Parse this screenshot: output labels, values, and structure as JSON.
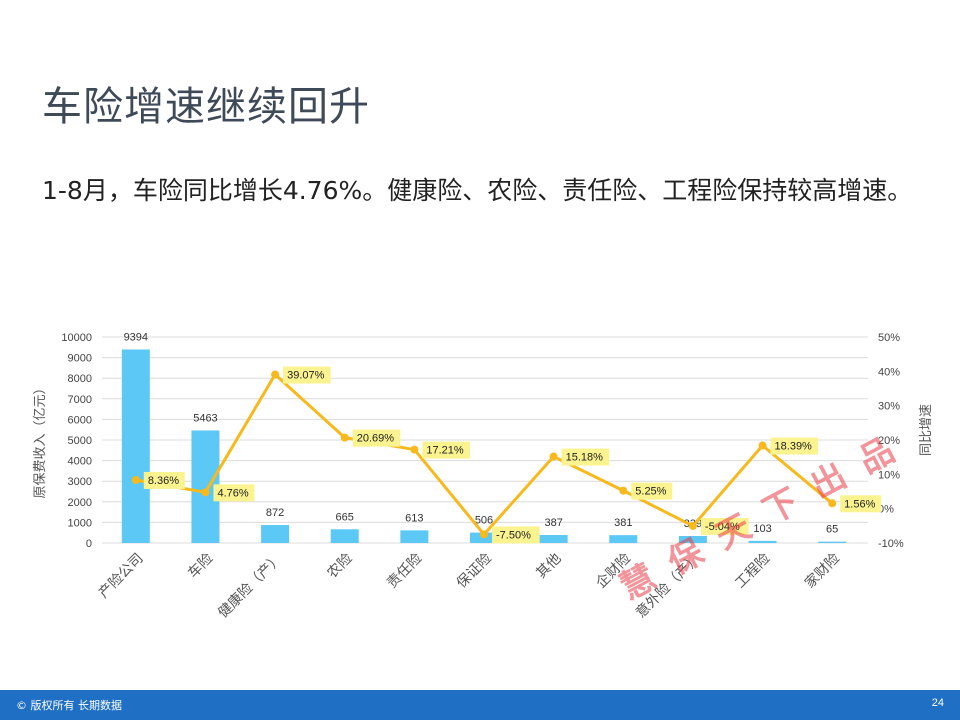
{
  "title": "车险增速继续回升",
  "subtitle": "1-8月，车险同比增长4.76%。健康险、农险、责任险、工程险保持较高增速。",
  "watermark": "慧保天下出品",
  "footer": {
    "copyright": "© 版权所有 长期数据",
    "page_number": "24"
  },
  "colors": {
    "bar": "#5bc8f5",
    "line": "#f7b91b",
    "label_bg": "#fbf38f",
    "footer": "#1f6fc5"
  },
  "chart_data": {
    "type": "bar",
    "categories": [
      "产险公司",
      "车险",
      "健康险（产）",
      "农险",
      "责任险",
      "保证险",
      "其他",
      "企财险",
      "意外险（产）",
      "工程险",
      "家财险"
    ],
    "series": [
      {
        "values": [
          9394,
          5463,
          872,
          665,
          613,
          506,
          387,
          381,
          339,
          103,
          65
        ],
        "type": "bar",
        "axis": "left",
        "labels": [
          "9394",
          "5463",
          "872",
          "665",
          "613",
          "506",
          "387",
          "381",
          "339",
          "103",
          "65"
        ]
      },
      {
        "values": [
          8.36,
          4.76,
          39.07,
          20.69,
          17.21,
          -7.5,
          15.18,
          5.25,
          -5.04,
          18.39,
          1.56
        ],
        "type": "line",
        "axis": "right",
        "labels": [
          "8.36%",
          "4.76%",
          "39.07%",
          "20.69%",
          "17.21%",
          "-7.50%",
          "15.18%",
          "5.25%",
          "-5.04%",
          "18.39%",
          "1.56%"
        ]
      }
    ],
    "ylabel": "原保费收入（亿元）",
    "y2label": "同比增速",
    "ylim": [
      0,
      10000
    ],
    "y_ticks": [
      "0",
      "1000",
      "2000",
      "3000",
      "4000",
      "5000",
      "6000",
      "7000",
      "8000",
      "9000",
      "10000"
    ],
    "y2lim": [
      -10,
      50
    ],
    "y2_ticks": [
      "-10%",
      "0%",
      "10%",
      "20%",
      "30%",
      "40%",
      "50%"
    ],
    "grid": true,
    "legend": "none"
  }
}
